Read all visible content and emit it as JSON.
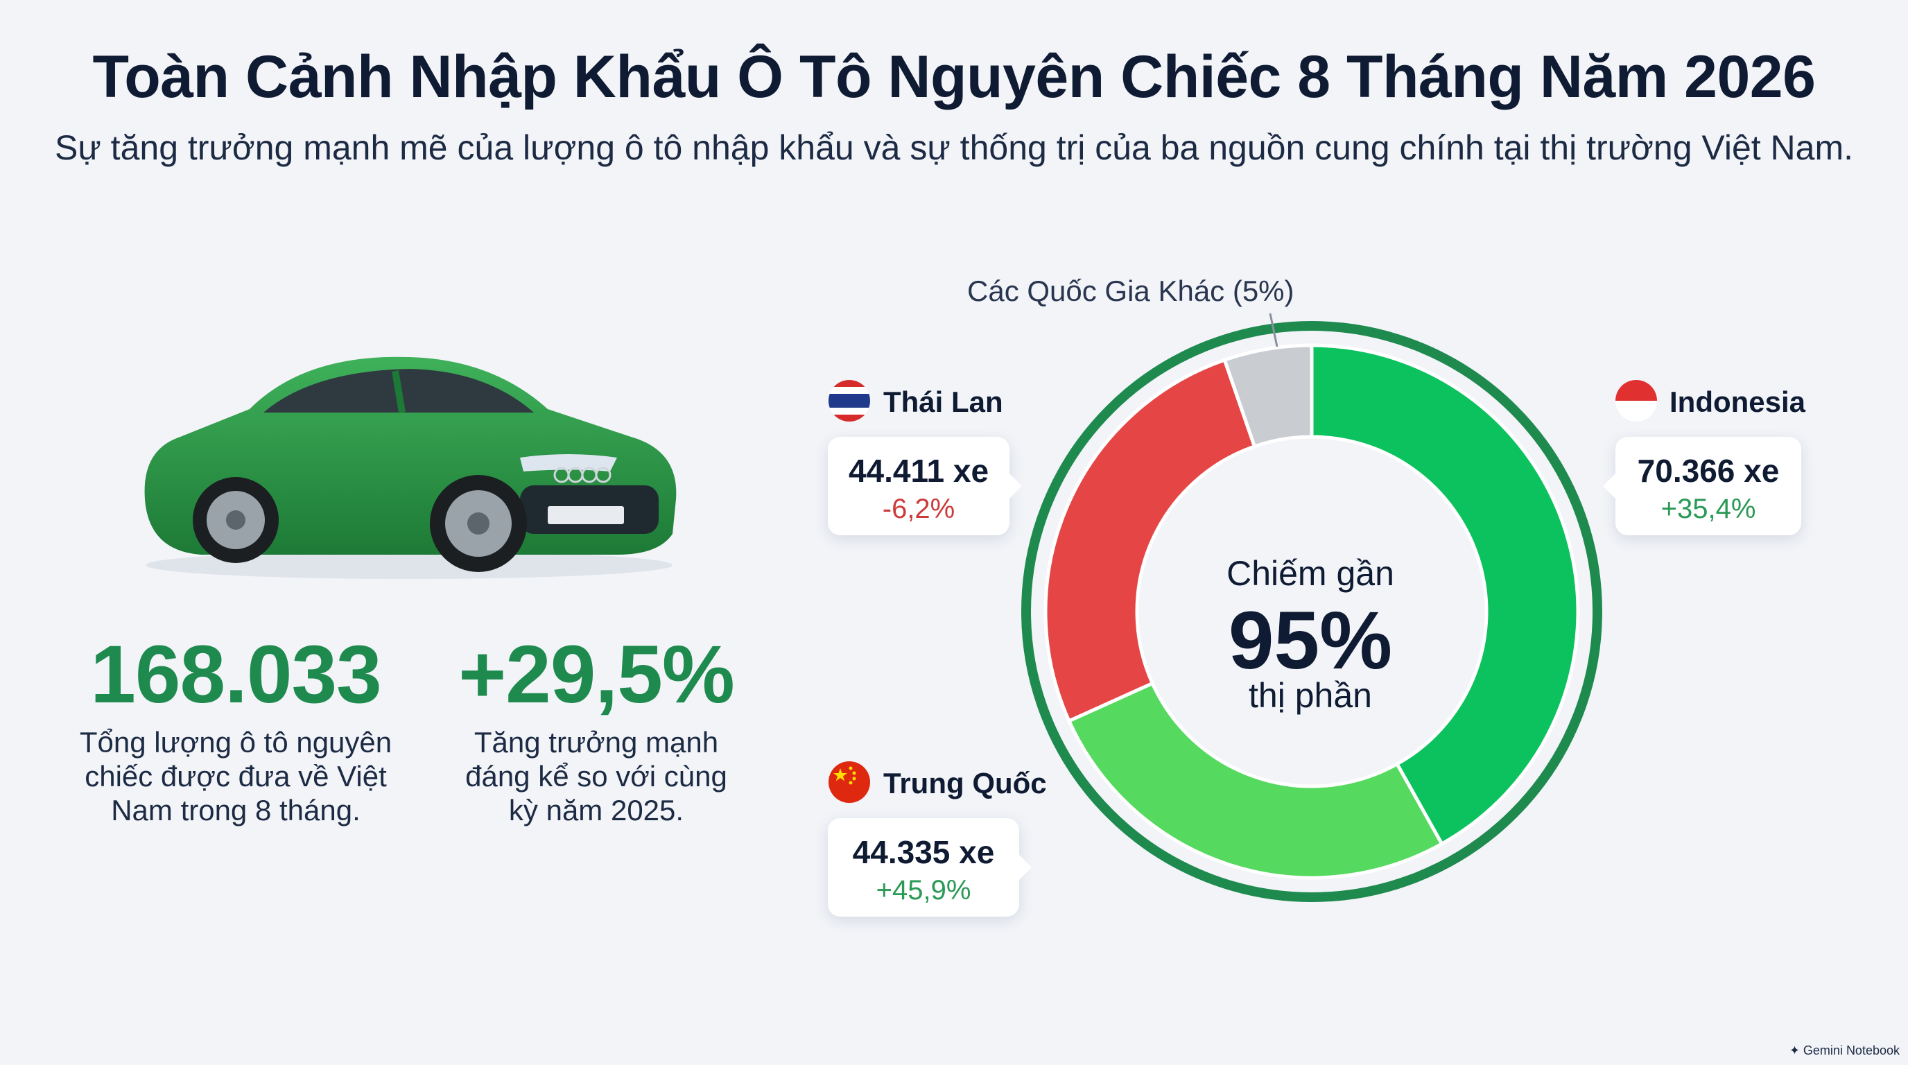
{
  "header": {
    "title": "Toàn Cảnh Nhập Khẩu Ô Tô Nguyên Chiếc 8 Tháng Năm 2026",
    "subtitle": "Sự tăng trưởng mạnh mẽ của lượng ô tô nhập khẩu và sự thống trị của ba nguồn cung chính tại thị trường Việt Nam."
  },
  "stats": {
    "total_value": "168.033",
    "total_desc": [
      "Tổng lượng ô tô nguyên",
      "chiếc được đưa về Việt",
      "Nam trong 8 tháng."
    ],
    "growth_value": "+29,5%",
    "growth_desc": [
      "Tăng trưởng mạnh",
      "đáng kể so với cùng",
      "kỳ năm 2025."
    ]
  },
  "center": {
    "line1": "Chiếm gần",
    "big": "95%",
    "line2": "thị phần"
  },
  "countries": {
    "thailand": {
      "name": "Thái Lan",
      "value": "44.411 xe",
      "change": "-6,2%"
    },
    "indonesia": {
      "name": "Indonesia",
      "value": "70.366 xe",
      "change": "+35,4%"
    },
    "china": {
      "name": "Trung Quốc",
      "value": "44.335 xe",
      "change": "+45,9%"
    },
    "other": {
      "label": "Các Quốc Gia Khác (5%)"
    }
  },
  "colors": {
    "indonesia": "#0bc25f",
    "china": "#55d95f",
    "thailand": "#e64545",
    "other": "#c9ccd1",
    "outer_ring": "#1e8a4e",
    "positive": "#2a9a55",
    "negative": "#cc3b3b"
  },
  "chart_data": {
    "type": "pie",
    "categories": [
      "Indonesia",
      "Trung Quốc",
      "Thái Lan",
      "Các Quốc Gia Khác"
    ],
    "values": [
      70366,
      44335,
      44411,
      8921
    ],
    "share_percent": [
      41.9,
      26.4,
      26.4,
      5.3
    ]
  },
  "footer": {
    "brand": "Gemini Notebook"
  }
}
